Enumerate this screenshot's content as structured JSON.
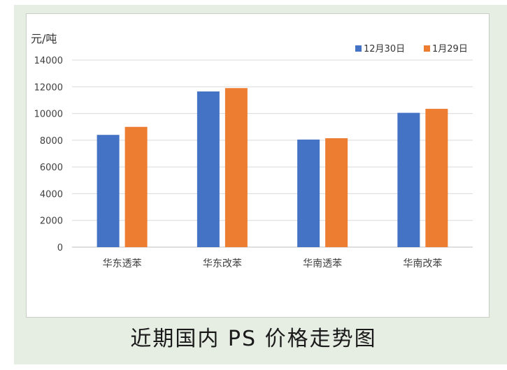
{
  "caption": "近期国内 PS 价格走势图",
  "chart_data": {
    "type": "bar",
    "ylabel": "元/吨",
    "categories": [
      "华东透苯",
      "华东改苯",
      "华南透苯",
      "华南改苯"
    ],
    "series": [
      {
        "name": "12月30日",
        "color": "#4472c4",
        "values": [
          8400,
          11650,
          8050,
          10050
        ]
      },
      {
        "name": "1月29日",
        "color": "#ed7d31",
        "values": [
          9000,
          11900,
          8150,
          10350
        ]
      }
    ],
    "ylim": [
      0,
      14000
    ],
    "yticks": [
      "0",
      "2000",
      "4000",
      "6000",
      "8000",
      "10000",
      "12000",
      "14000"
    ],
    "grid": true,
    "legend_position": "top-right"
  }
}
